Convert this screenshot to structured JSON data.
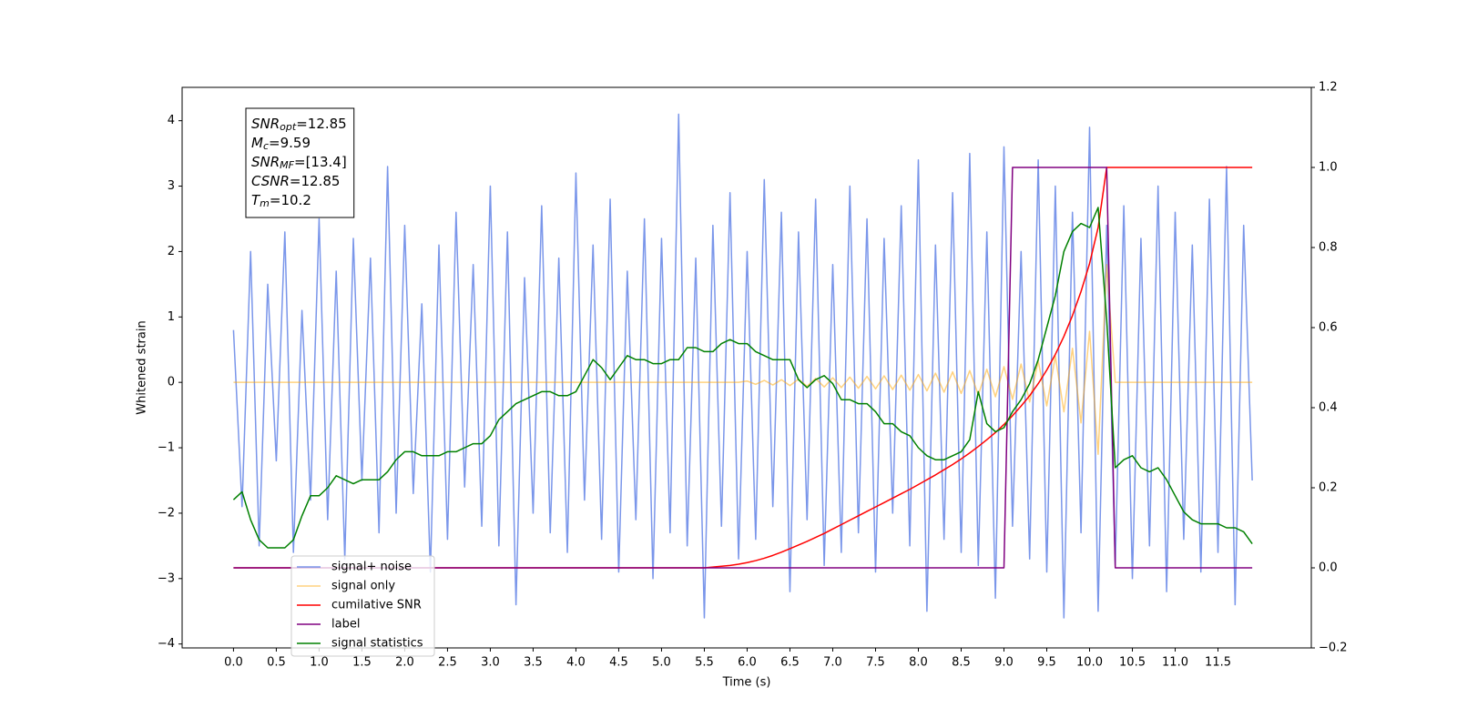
{
  "chart_data": {
    "type": "line",
    "xlabel": "Time (s)",
    "ylabel": "Whitened strain",
    "xlim": [
      -0.6,
      12.59
    ],
    "ylim": [
      -4.06,
      4.51
    ],
    "y2lim": [
      -0.2,
      1.2
    ],
    "xticks": [
      {
        "value": 0,
        "label": "0.0"
      },
      {
        "value": 0.5,
        "label": "0.5"
      },
      {
        "value": 1,
        "label": "1.0"
      },
      {
        "value": 1.5,
        "label": "1.5"
      },
      {
        "value": 2,
        "label": "2.0"
      },
      {
        "value": 2.5,
        "label": "2.5"
      },
      {
        "value": 3,
        "label": "3.0"
      },
      {
        "value": 3.5,
        "label": "3.5"
      },
      {
        "value": 4,
        "label": "4.0"
      },
      {
        "value": 4.5,
        "label": "4.5"
      },
      {
        "value": 5,
        "label": "5.0"
      },
      {
        "value": 5.5,
        "label": "5.5"
      },
      {
        "value": 6,
        "label": "6.0"
      },
      {
        "value": 6.5,
        "label": "6.5"
      },
      {
        "value": 7,
        "label": "7.0"
      },
      {
        "value": 7.5,
        "label": "7.5"
      },
      {
        "value": 8,
        "label": "8.0"
      },
      {
        "value": 8.5,
        "label": "8.5"
      },
      {
        "value": 9,
        "label": "9.0"
      },
      {
        "value": 9.5,
        "label": "9.5"
      },
      {
        "value": 10,
        "label": "10.0"
      },
      {
        "value": 10.5,
        "label": "10.5"
      },
      {
        "value": 11,
        "label": "11.0"
      },
      {
        "value": 11.5,
        "label": "11.5"
      }
    ],
    "yticks": [
      {
        "value": -4,
        "label": "−4"
      },
      {
        "value": -3,
        "label": "−3"
      },
      {
        "value": -2,
        "label": "−2"
      },
      {
        "value": -1,
        "label": "−1"
      },
      0,
      1,
      2,
      3,
      4
    ],
    "y2ticks": [
      {
        "value": -0.2,
        "label": "−0.2"
      },
      {
        "value": 0,
        "label": "0.0"
      },
      {
        "value": 0.2,
        "label": "0.2"
      },
      {
        "value": 0.4,
        "label": "0.4"
      },
      {
        "value": 0.6,
        "label": "0.6"
      },
      {
        "value": 0.8,
        "label": "0.8"
      },
      {
        "value": 1,
        "label": "1.0"
      },
      {
        "value": 1.2,
        "label": "1.2"
      }
    ],
    "grid": false,
    "legend": "lower left",
    "annotation": [
      {
        "main": "SNR",
        "sub": "opt",
        "rest": "=12.85"
      },
      {
        "main": "M",
        "sub": "c",
        "rest": "=9.59"
      },
      {
        "main": "SNR",
        "sub": "MF",
        "rest": "=[13.4]"
      },
      {
        "main": "CSNR",
        "rest": "=12.85"
      },
      {
        "main": "T",
        "sub": "m",
        "rest": "=10.2"
      }
    ],
    "x": [
      0,
      0.1,
      0.2,
      0.3,
      0.4,
      0.5,
      0.6,
      0.7,
      0.8,
      0.9,
      1,
      1.1,
      1.2,
      1.3,
      1.4,
      1.5,
      1.6,
      1.7,
      1.8,
      1.9,
      2,
      2.1,
      2.2,
      2.3,
      2.4,
      2.5,
      2.6,
      2.7,
      2.8,
      2.9,
      3,
      3.1,
      3.2,
      3.3,
      3.4,
      3.5,
      3.6,
      3.7,
      3.8,
      3.9,
      4,
      4.1,
      4.2,
      4.3,
      4.4,
      4.5,
      4.6,
      4.7,
      4.8,
      4.9,
      5,
      5.1,
      5.2,
      5.3,
      5.4,
      5.5,
      5.6,
      5.7,
      5.8,
      5.9,
      6,
      6.1,
      6.2,
      6.3,
      6.4,
      6.5,
      6.6,
      6.7,
      6.8,
      6.9,
      7,
      7.1,
      7.2,
      7.3,
      7.4,
      7.5,
      7.6,
      7.7,
      7.8,
      7.9,
      8,
      8.1,
      8.2,
      8.3,
      8.4,
      8.5,
      8.6,
      8.7,
      8.8,
      8.9,
      9,
      9.1,
      9.2,
      9.3,
      9.4,
      9.5,
      9.6,
      9.7,
      9.8,
      9.9,
      10,
      10.1,
      10.2,
      10.3,
      10.4,
      10.5,
      10.6,
      10.7,
      10.8,
      10.9,
      11,
      11.1,
      11.2,
      11.3,
      11.4,
      11.5,
      11.6,
      11.7,
      11.8,
      11.9
    ],
    "series": [
      {
        "name": "signal+ noise",
        "color": "#4169e1",
        "axis": "y",
        "values": [
          0.8,
          -1.9,
          2.0,
          -2.5,
          1.5,
          -1.2,
          2.3,
          -2.6,
          1.1,
          -1.8,
          2.5,
          -2.1,
          1.7,
          -2.7,
          2.2,
          -1.5,
          1.9,
          -2.3,
          3.3,
          -2.0,
          2.4,
          -1.7,
          1.2,
          -2.9,
          2.1,
          -2.4,
          2.6,
          -1.6,
          1.8,
          -2.2,
          3.0,
          -2.5,
          2.3,
          -3.4,
          1.6,
          -2.0,
          2.7,
          -2.3,
          1.9,
          -2.6,
          3.2,
          -1.8,
          2.1,
          -2.4,
          2.8,
          -2.9,
          1.7,
          -2.1,
          2.5,
          -3.0,
          2.2,
          -2.3,
          4.1,
          -2.5,
          1.9,
          -3.6,
          2.4,
          -2.2,
          2.9,
          -2.7,
          2.0,
          -2.4,
          3.1,
          -1.9,
          2.6,
          -3.2,
          2.3,
          -2.1,
          2.8,
          -2.8,
          1.8,
          -2.6,
          3.0,
          -2.3,
          2.5,
          -2.9,
          2.2,
          -2.0,
          2.7,
          -2.5,
          3.4,
          -3.5,
          2.1,
          -2.4,
          2.9,
          -2.6,
          3.5,
          -2.8,
          2.3,
          -3.3,
          3.6,
          -2.2,
          2.0,
          -2.7,
          3.4,
          -2.9,
          3.0,
          -3.6,
          2.6,
          -2.3,
          3.9,
          -3.5,
          2.4,
          -2.8,
          2.7,
          -3.0,
          2.2,
          -2.5,
          3.0,
          -3.2,
          2.6,
          -2.4,
          2.1,
          -2.9,
          2.8,
          -2.6,
          3.3,
          -3.4,
          2.4,
          -1.5
        ]
      },
      {
        "name": "signal only",
        "color": "#ffa500",
        "axis": "y",
        "values": [
          0,
          0,
          0,
          0,
          0,
          0,
          0,
          0,
          0,
          0,
          0,
          0,
          0,
          0,
          0,
          0,
          0,
          0,
          0,
          0,
          0,
          0,
          0,
          0,
          0,
          0,
          0,
          0,
          0,
          0,
          0,
          0,
          0,
          0,
          0,
          0,
          0,
          0,
          0,
          0,
          0,
          0,
          0,
          0,
          0,
          0,
          0,
          0,
          0,
          0,
          0,
          0,
          0,
          0,
          0,
          0,
          0,
          0,
          0,
          0,
          0.02,
          -0.03,
          0.03,
          -0.04,
          0.04,
          -0.05,
          0.05,
          -0.06,
          0.06,
          -0.07,
          0.07,
          -0.08,
          0.08,
          -0.09,
          0.09,
          -0.1,
          0.1,
          -0.11,
          0.11,
          -0.12,
          0.12,
          -0.13,
          0.14,
          -0.15,
          0.16,
          -0.17,
          0.18,
          -0.19,
          0.2,
          -0.22,
          0.24,
          -0.26,
          0.28,
          -0.3,
          0.33,
          -0.36,
          0.4,
          -0.45,
          0.52,
          -0.62,
          0.78,
          -1.1,
          1.8,
          0,
          0,
          0,
          0,
          0,
          0,
          0,
          0,
          0,
          0,
          0,
          0,
          0,
          0,
          0,
          0,
          0
        ]
      },
      {
        "name": "cumilative SNR",
        "color": "#ff0000",
        "axis": "y2",
        "values": [
          0,
          0,
          0,
          0,
          0,
          0,
          0,
          0,
          0,
          0,
          0,
          0,
          0,
          0,
          0,
          0,
          0,
          0,
          0,
          0,
          0,
          0,
          0,
          0,
          0,
          0,
          0,
          0,
          0,
          0,
          0,
          0,
          0,
          0,
          0,
          0,
          0,
          0,
          0,
          0,
          0,
          0,
          0,
          0,
          0,
          0,
          0,
          0,
          0,
          0,
          0,
          0,
          0,
          0,
          0,
          0,
          0.002,
          0.004,
          0.006,
          0.009,
          0.013,
          0.018,
          0.024,
          0.031,
          0.039,
          0.048,
          0.057,
          0.066,
          0.076,
          0.086,
          0.097,
          0.108,
          0.119,
          0.13,
          0.141,
          0.152,
          0.163,
          0.174,
          0.185,
          0.196,
          0.208,
          0.22,
          0.232,
          0.245,
          0.258,
          0.272,
          0.287,
          0.303,
          0.32,
          0.338,
          0.358,
          0.38,
          0.404,
          0.43,
          0.46,
          0.494,
          0.533,
          0.578,
          0.63,
          0.69,
          0.76,
          0.85,
          1,
          1,
          1,
          1,
          1,
          1,
          1,
          1,
          1,
          1,
          1,
          1,
          1,
          1,
          1,
          1,
          1,
          1
        ]
      },
      {
        "name": "label",
        "color": "#800080",
        "axis": "y2",
        "values": [
          0,
          0,
          0,
          0,
          0,
          0,
          0,
          0,
          0,
          0,
          0,
          0,
          0,
          0,
          0,
          0,
          0,
          0,
          0,
          0,
          0,
          0,
          0,
          0,
          0,
          0,
          0,
          0,
          0,
          0,
          0,
          0,
          0,
          0,
          0,
          0,
          0,
          0,
          0,
          0,
          0,
          0,
          0,
          0,
          0,
          0,
          0,
          0,
          0,
          0,
          0,
          0,
          0,
          0,
          0,
          0,
          0,
          0,
          0,
          0,
          0,
          0,
          0,
          0,
          0,
          0,
          0,
          0,
          0,
          0,
          0,
          0,
          0,
          0,
          0,
          0,
          0,
          0,
          0,
          0,
          0,
          0,
          0,
          0,
          0,
          0,
          0,
          0,
          0,
          0,
          0,
          1,
          1,
          1,
          1,
          1,
          1,
          1,
          1,
          1,
          1,
          1,
          1,
          0,
          0,
          0,
          0,
          0,
          0,
          0,
          0,
          0,
          0,
          0,
          0,
          0,
          0,
          0,
          0,
          0
        ]
      },
      {
        "name": "signal statistics",
        "color": "#008000",
        "axis": "y2",
        "values": [
          0.17,
          0.19,
          0.12,
          0.07,
          0.05,
          0.05,
          0.05,
          0.07,
          0.13,
          0.18,
          0.18,
          0.2,
          0.23,
          0.22,
          0.21,
          0.22,
          0.22,
          0.22,
          0.24,
          0.27,
          0.29,
          0.29,
          0.28,
          0.28,
          0.28,
          0.29,
          0.29,
          0.3,
          0.31,
          0.31,
          0.33,
          0.37,
          0.39,
          0.41,
          0.42,
          0.43,
          0.44,
          0.44,
          0.43,
          0.43,
          0.44,
          0.48,
          0.52,
          0.5,
          0.47,
          0.5,
          0.53,
          0.52,
          0.52,
          0.51,
          0.51,
          0.52,
          0.52,
          0.55,
          0.55,
          0.54,
          0.54,
          0.56,
          0.57,
          0.56,
          0.56,
          0.54,
          0.53,
          0.52,
          0.52,
          0.52,
          0.47,
          0.45,
          0.47,
          0.48,
          0.46,
          0.42,
          0.42,
          0.41,
          0.41,
          0.39,
          0.36,
          0.36,
          0.34,
          0.33,
          0.3,
          0.28,
          0.27,
          0.27,
          0.28,
          0.29,
          0.32,
          0.44,
          0.36,
          0.34,
          0.35,
          0.39,
          0.42,
          0.46,
          0.52,
          0.6,
          0.68,
          0.79,
          0.84,
          0.86,
          0.85,
          0.9,
          0.62,
          0.25,
          0.27,
          0.28,
          0.25,
          0.24,
          0.25,
          0.22,
          0.18,
          0.14,
          0.12,
          0.11,
          0.11,
          0.11,
          0.1,
          0.1,
          0.09,
          0.06
        ]
      }
    ]
  }
}
